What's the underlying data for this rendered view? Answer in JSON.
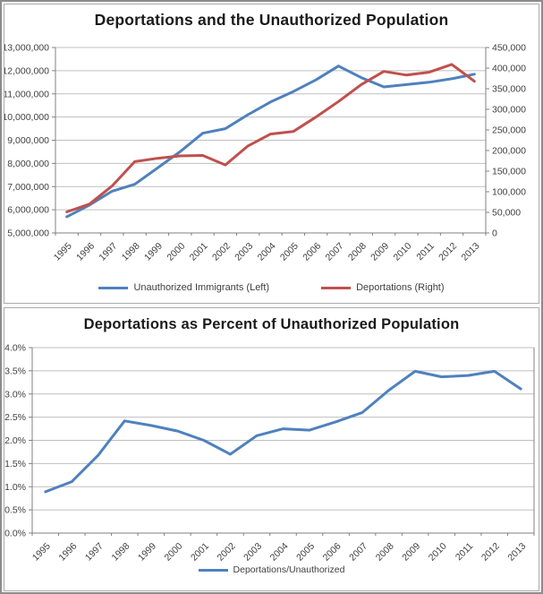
{
  "page": {
    "background": "#ffffff",
    "outer_border_color": "#8c8c8c",
    "panel_border_color": "#ababab"
  },
  "style": {
    "grid_color": "#bfbfbf",
    "axis_color": "#808080",
    "tick_label_color": "#3f3f3f",
    "title_color": "#1a1a1a"
  },
  "chart_data": [
    {
      "type": "line",
      "title": "Deportations and the Unauthorized Population",
      "grid": true,
      "legend_position": "bottom",
      "categories": [
        "1995",
        "1996",
        "1997",
        "1998",
        "1999",
        "2000",
        "2001",
        "2002",
        "2003",
        "2004",
        "2005",
        "2006",
        "2007",
        "2008",
        "2009",
        "2010",
        "2011",
        "2012",
        "2013"
      ],
      "series": [
        {
          "name": "Unauthorized Immigrants (Left)",
          "axis": "left",
          "color": "#4F81BD",
          "values": [
            5700000,
            6200000,
            6800000,
            7100000,
            7800000,
            8500000,
            9300000,
            9500000,
            10100000,
            10650000,
            11100000,
            11600000,
            12200000,
            11700000,
            11300000,
            11400000,
            11500000,
            11650000,
            11850000
          ]
        },
        {
          "name": "Deportations (Right)",
          "axis": "right",
          "color": "#C0504D",
          "values": [
            51000,
            70000,
            114000,
            173000,
            181000,
            187000,
            188000,
            165000,
            211000,
            240000,
            246000,
            281000,
            319000,
            360000,
            392000,
            383000,
            390000,
            409000,
            368000
          ]
        }
      ],
      "left_axis": {
        "min": 5000000,
        "max": 13000000,
        "step": 1000000,
        "tick_labels": [
          "5,000,000",
          "6,000,000",
          "7,000,000",
          "8,000,000",
          "9,000,000",
          "10,000,000",
          "11,000,000",
          "12,000,000",
          "13,000,000"
        ]
      },
      "right_axis": {
        "min": 0,
        "max": 450000,
        "step": 50000,
        "tick_labels": [
          "0",
          "50,000",
          "100,000",
          "150,000",
          "200,000",
          "250,000",
          "300,000",
          "350,000",
          "400,000",
          "450,000"
        ]
      }
    },
    {
      "type": "line",
      "title": "Deportations as Percent of Unauthorized Population",
      "grid": true,
      "legend_position": "bottom",
      "categories": [
        "1995",
        "1996",
        "1997",
        "1998",
        "1999",
        "2000",
        "2001",
        "2002",
        "2003",
        "2004",
        "2005",
        "2006",
        "2007",
        "2008",
        "2009",
        "2010",
        "2011",
        "2012",
        "2013"
      ],
      "series": [
        {
          "name": "Deportations/Unauthorized",
          "axis": "left",
          "color": "#4F81BD",
          "values": [
            0.89,
            1.11,
            1.68,
            2.42,
            2.32,
            2.2,
            2.0,
            1.7,
            2.1,
            2.25,
            2.22,
            2.4,
            2.6,
            3.08,
            3.49,
            3.37,
            3.4,
            3.49,
            3.11
          ]
        }
      ],
      "left_axis": {
        "min": 0,
        "max": 4.0,
        "step": 0.5,
        "tick_labels": [
          "0.0%",
          "0.5%",
          "1.0%",
          "1.5%",
          "2.0%",
          "2.5%",
          "3.0%",
          "3.5%",
          "4.0%"
        ]
      }
    }
  ]
}
